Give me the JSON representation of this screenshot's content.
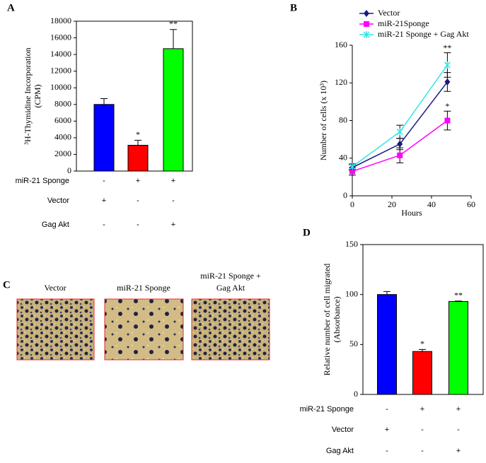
{
  "chart_data": [
    {
      "type": "bar",
      "panel": "A",
      "ylabel": [
        "³H-Thymidine Incorporation",
        "(CPM)"
      ],
      "values": [
        8000,
        3100,
        14700
      ],
      "errors": [
        700,
        600,
        2300
      ],
      "colors": [
        "#0000ff",
        "#ff0000",
        "#00ff00"
      ],
      "ylim": [
        0,
        18000
      ],
      "yticks": [
        0,
        2000,
        4000,
        6000,
        8000,
        10000,
        12000,
        14000,
        16000,
        18000
      ],
      "annotations": [
        {
          "index": 1,
          "text": "*"
        },
        {
          "index": 2,
          "text": "**"
        }
      ],
      "conditions": [
        {
          "label": "miR-21 Sponge",
          "values": [
            "-",
            "+",
            "+"
          ]
        },
        {
          "label": "Vector",
          "values": [
            "+",
            "-",
            "-"
          ]
        },
        {
          "label": "Gag Akt",
          "values": [
            "-",
            "-",
            "+"
          ]
        }
      ]
    },
    {
      "type": "line",
      "panel": "B",
      "ylabel": "Number of cells (x 10³)",
      "xlabel": "Hours",
      "x": [
        0,
        24,
        48
      ],
      "series": [
        {
          "name": "Vector",
          "color": "#1a1a80",
          "marker": "diamond",
          "values": [
            30,
            55,
            121
          ],
          "errors": [
            3,
            6,
            10
          ]
        },
        {
          "name": "miR-21Sponge",
          "color": "#ff00ff",
          "marker": "square",
          "values": [
            26,
            43,
            80
          ],
          "errors": [
            4,
            8,
            10
          ]
        },
        {
          "name": "miR-21 Sponge + Gag Akt",
          "color": "#33e6e6",
          "marker": "star",
          "values": [
            31,
            68,
            139
          ],
          "errors": [
            3,
            7,
            13
          ]
        }
      ],
      "xlim": [
        0,
        60
      ],
      "xticks": [
        0,
        20,
        40,
        60
      ],
      "ylim": [
        0,
        160
      ],
      "yticks": [
        0,
        40,
        80,
        120,
        160
      ],
      "annotations": [
        {
          "series": 2,
          "index": 2,
          "text": "**"
        },
        {
          "series": 1,
          "index": 2,
          "text": "*"
        }
      ]
    },
    {
      "type": "bar",
      "panel": "D",
      "ylabel": [
        "Relative number of cell migrated",
        "(Absorbance)"
      ],
      "values": [
        100,
        43,
        93
      ],
      "errors": [
        3,
        2,
        0.5
      ],
      "colors": [
        "#0000ff",
        "#ff0000",
        "#00ff00"
      ],
      "ylim": [
        0,
        150
      ],
      "yticks": [
        0,
        50,
        100,
        150
      ],
      "annotations": [
        {
          "index": 1,
          "text": "*"
        },
        {
          "index": 2,
          "text": "**"
        }
      ],
      "conditions": [
        {
          "label": "miR-21 Sponge",
          "values": [
            "-",
            "+",
            "+"
          ]
        },
        {
          "label": "Vector",
          "values": [
            "+",
            "-",
            "-"
          ]
        },
        {
          "label": "Gag Akt",
          "values": [
            "-",
            "-",
            "+"
          ]
        }
      ]
    }
  ],
  "panel_c": {
    "panel": "C",
    "images": [
      {
        "label": [
          "Vector"
        ]
      },
      {
        "label": [
          "miR-21 Sponge"
        ]
      },
      {
        "label": [
          "miR-21 Sponge +",
          "Gag Akt"
        ]
      }
    ]
  }
}
